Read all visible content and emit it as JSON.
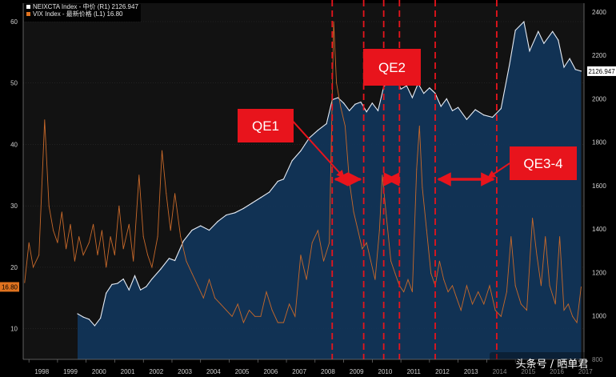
{
  "legend": [
    {
      "swatch": "#ffffff",
      "label": "NEIXCTA Index - 中价 (R1) 2126.947"
    },
    {
      "swatch": "#e0731f",
      "label": "VIX Index - 最新价格 (L1)   16.80"
    }
  ],
  "last_value_tags": {
    "left": "16.80",
    "right": "2126.947"
  },
  "callouts": [
    {
      "label": "QE1"
    },
    {
      "label": "QE2"
    },
    {
      "label": "QE3-4"
    }
  ],
  "watermark": "头条号 / 晒单君",
  "colors": {
    "background": "#000000",
    "area_fill": "#123559",
    "area_line": "#e6ecf5",
    "vix_line": "#c8692a",
    "vline": "#e8141c",
    "callout_box": "#e8141c",
    "arrow": "#e8141c"
  },
  "chart_data": {
    "type": "line",
    "x_range": [
      1997.8,
      2017.4
    ],
    "x_ticks": [
      "1998",
      "1999",
      "2000",
      "2001",
      "2002",
      "2003",
      "2004",
      "2005",
      "2006",
      "2007",
      "2008",
      "2009",
      "2010",
      "2011",
      "2012",
      "2013",
      "2014",
      "2015",
      "2016",
      "2017"
    ],
    "left_axis": {
      "ylim": [
        5,
        63
      ],
      "ticks": [
        "10",
        "20",
        "30",
        "40",
        "50",
        "60"
      ]
    },
    "right_axis": {
      "ylim": [
        800,
        2440
      ],
      "ticks": [
        "800",
        "1000",
        "1200",
        "1400",
        "1600",
        "1800",
        "2000",
        "2200",
        "2400"
      ]
    },
    "vertical_lines_year": [
      2008.6,
      2009.7,
      2010.4,
      2010.95,
      2012.2,
      2014.35
    ],
    "qe_periods": [
      [
        2008.6,
        2009.7
      ],
      [
        2010.4,
        2010.95
      ],
      [
        2012.2,
        2014.35
      ]
    ],
    "series": [
      {
        "name": "NEIXCTA Index",
        "axis": "right",
        "style": "area",
        "points": [
          [
            1999.7,
            1010
          ],
          [
            1999.9,
            995
          ],
          [
            2000.1,
            985
          ],
          [
            2000.3,
            955
          ],
          [
            2000.5,
            990
          ],
          [
            2000.7,
            1105
          ],
          [
            2000.9,
            1145
          ],
          [
            2001.1,
            1150
          ],
          [
            2001.3,
            1170
          ],
          [
            2001.5,
            1120
          ],
          [
            2001.7,
            1185
          ],
          [
            2001.9,
            1120
          ],
          [
            2002.1,
            1135
          ],
          [
            2002.3,
            1170
          ],
          [
            2002.6,
            1215
          ],
          [
            2002.9,
            1265
          ],
          [
            2003.1,
            1255
          ],
          [
            2003.4,
            1345
          ],
          [
            2003.7,
            1395
          ],
          [
            2004.0,
            1415
          ],
          [
            2004.3,
            1395
          ],
          [
            2004.6,
            1435
          ],
          [
            2004.9,
            1465
          ],
          [
            2005.2,
            1475
          ],
          [
            2005.5,
            1495
          ],
          [
            2005.8,
            1520
          ],
          [
            2006.1,
            1545
          ],
          [
            2006.4,
            1570
          ],
          [
            2006.7,
            1620
          ],
          [
            2006.9,
            1630
          ],
          [
            2007.2,
            1715
          ],
          [
            2007.5,
            1760
          ],
          [
            2007.8,
            1820
          ],
          [
            2008.1,
            1855
          ],
          [
            2008.4,
            1885
          ],
          [
            2008.6,
            1995
          ],
          [
            2008.8,
            2005
          ],
          [
            2009.0,
            1980
          ],
          [
            2009.2,
            1945
          ],
          [
            2009.4,
            1975
          ],
          [
            2009.6,
            1985
          ],
          [
            2009.8,
            1940
          ],
          [
            2010.0,
            1980
          ],
          [
            2010.2,
            1945
          ],
          [
            2010.4,
            2055
          ],
          [
            2010.6,
            2085
          ],
          [
            2010.8,
            2110
          ],
          [
            2011.0,
            2045
          ],
          [
            2011.2,
            2060
          ],
          [
            2011.4,
            2005
          ],
          [
            2011.6,
            2070
          ],
          [
            2011.8,
            2025
          ],
          [
            2012.0,
            2050
          ],
          [
            2012.2,
            2025
          ],
          [
            2012.4,
            1965
          ],
          [
            2012.6,
            2000
          ],
          [
            2012.8,
            1945
          ],
          [
            2013.0,
            1960
          ],
          [
            2013.3,
            1905
          ],
          [
            2013.6,
            1950
          ],
          [
            2013.9,
            1925
          ],
          [
            2014.2,
            1915
          ],
          [
            2014.5,
            1955
          ],
          [
            2014.8,
            2160
          ],
          [
            2015.0,
            2315
          ],
          [
            2015.3,
            2355
          ],
          [
            2015.5,
            2220
          ],
          [
            2015.8,
            2310
          ],
          [
            2016.0,
            2255
          ],
          [
            2016.3,
            2310
          ],
          [
            2016.5,
            2270
          ],
          [
            2016.7,
            2145
          ],
          [
            2016.9,
            2185
          ],
          [
            2017.1,
            2135
          ],
          [
            2017.3,
            2127
          ]
        ]
      },
      {
        "name": "VIX Index",
        "axis": "left",
        "style": "line",
        "points": [
          [
            1997.85,
            17.5
          ],
          [
            1998.0,
            24
          ],
          [
            1998.15,
            20
          ],
          [
            1998.35,
            22
          ],
          [
            1998.55,
            44
          ],
          [
            1998.7,
            30
          ],
          [
            1998.85,
            26
          ],
          [
            1999.0,
            24
          ],
          [
            1999.15,
            29
          ],
          [
            1999.3,
            23
          ],
          [
            1999.45,
            27
          ],
          [
            1999.6,
            21
          ],
          [
            1999.75,
            25
          ],
          [
            1999.9,
            22
          ],
          [
            2000.1,
            24
          ],
          [
            2000.25,
            27
          ],
          [
            2000.4,
            22
          ],
          [
            2000.55,
            26
          ],
          [
            2000.7,
            20
          ],
          [
            2000.85,
            25
          ],
          [
            2001.0,
            22
          ],
          [
            2001.15,
            30
          ],
          [
            2001.3,
            23
          ],
          [
            2001.5,
            27
          ],
          [
            2001.65,
            21
          ],
          [
            2001.85,
            35
          ],
          [
            2002.0,
            25
          ],
          [
            2002.15,
            22
          ],
          [
            2002.3,
            20
          ],
          [
            2002.5,
            25
          ],
          [
            2002.65,
            39
          ],
          [
            2002.8,
            32
          ],
          [
            2002.95,
            26
          ],
          [
            2003.1,
            32
          ],
          [
            2003.3,
            25
          ],
          [
            2003.5,
            21
          ],
          [
            2003.7,
            19
          ],
          [
            2003.9,
            17
          ],
          [
            2004.1,
            15
          ],
          [
            2004.3,
            18
          ],
          [
            2004.5,
            15
          ],
          [
            2004.7,
            14
          ],
          [
            2004.9,
            13
          ],
          [
            2005.1,
            12
          ],
          [
            2005.3,
            14
          ],
          [
            2005.5,
            11
          ],
          [
            2005.7,
            13
          ],
          [
            2005.9,
            12
          ],
          [
            2006.1,
            12
          ],
          [
            2006.3,
            16
          ],
          [
            2006.5,
            13
          ],
          [
            2006.7,
            11
          ],
          [
            2006.9,
            11
          ],
          [
            2007.1,
            14
          ],
          [
            2007.3,
            12
          ],
          [
            2007.5,
            22
          ],
          [
            2007.7,
            18
          ],
          [
            2007.9,
            24
          ],
          [
            2008.1,
            26
          ],
          [
            2008.3,
            21
          ],
          [
            2008.5,
            24
          ],
          [
            2008.65,
            60
          ],
          [
            2008.75,
            50
          ],
          [
            2008.9,
            46
          ],
          [
            2009.05,
            43
          ],
          [
            2009.2,
            34
          ],
          [
            2009.35,
            29
          ],
          [
            2009.5,
            26
          ],
          [
            2009.65,
            23
          ],
          [
            2009.8,
            24
          ],
          [
            2009.95,
            21
          ],
          [
            2010.1,
            18
          ],
          [
            2010.25,
            26
          ],
          [
            2010.35,
            35
          ],
          [
            2010.5,
            28
          ],
          [
            2010.65,
            21
          ],
          [
            2010.8,
            19
          ],
          [
            2010.95,
            17
          ],
          [
            2011.1,
            16
          ],
          [
            2011.25,
            18
          ],
          [
            2011.4,
            16
          ],
          [
            2011.55,
            36
          ],
          [
            2011.65,
            43
          ],
          [
            2011.75,
            33
          ],
          [
            2011.9,
            26
          ],
          [
            2012.05,
            19
          ],
          [
            2012.2,
            17
          ],
          [
            2012.35,
            21
          ],
          [
            2012.5,
            18
          ],
          [
            2012.65,
            16
          ],
          [
            2012.8,
            17
          ],
          [
            2012.95,
            15
          ],
          [
            2013.1,
            13
          ],
          [
            2013.3,
            17
          ],
          [
            2013.5,
            14
          ],
          [
            2013.7,
            16
          ],
          [
            2013.9,
            14
          ],
          [
            2014.1,
            17
          ],
          [
            2014.3,
            13
          ],
          [
            2014.5,
            12
          ],
          [
            2014.7,
            16
          ],
          [
            2014.85,
            25
          ],
          [
            2015.0,
            17
          ],
          [
            2015.2,
            14
          ],
          [
            2015.4,
            13
          ],
          [
            2015.6,
            28
          ],
          [
            2015.75,
            22
          ],
          [
            2015.9,
            17
          ],
          [
            2016.05,
            25
          ],
          [
            2016.2,
            17
          ],
          [
            2016.4,
            14
          ],
          [
            2016.55,
            25
          ],
          [
            2016.7,
            13
          ],
          [
            2016.85,
            14
          ],
          [
            2017.0,
            12
          ],
          [
            2017.15,
            11
          ],
          [
            2017.3,
            16.8
          ]
        ]
      }
    ]
  }
}
